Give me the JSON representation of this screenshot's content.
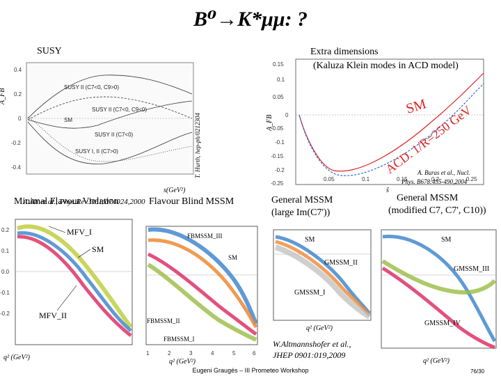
{
  "slide": {
    "title": "B⁰→K*μμ: ?",
    "footer": "Eugeni Graugés – III Prometeo Workshop",
    "page": "76/30"
  },
  "top_left": {
    "heading": "SUSY",
    "ylabel": "A_FB",
    "xlabel": "s(GeV²)",
    "side_ref": "T. Hurth, hep-ph/0212304",
    "ref": "A.Ali et al., Phys.Rev.D61:074024,2000",
    "curve_labels": [
      "SUSY II (C7<0, C9>0)",
      "SUSY II (C7<0, C9<0)",
      "SM",
      "SUSY II (C7<0)",
      "SUSY I, II (C7>0)"
    ],
    "yticks": [
      "0.4",
      "0.2",
      "0",
      "-0.2",
      "-0.4"
    ]
  },
  "top_right": {
    "heading": "Extra dimensions",
    "subheading": "(Kaluza Klein modes in ACD model)",
    "sm_label": "SM",
    "acd_label": "ACD. 1/R=250 GeV",
    "ref_line1": "A. Buras et al., Nucl.",
    "ref_line2": "Phys. B678:455-490,2004",
    "ylabel": "A_FB",
    "xlabel": "ŝ",
    "yticks": [
      "0.15",
      "0.1",
      "0.05",
      "0",
      "-0.05",
      "-0.1",
      "-0.15",
      "-0.2",
      "-0.25"
    ],
    "xticks": [
      "0.05",
      "0.1",
      "0.15",
      "0.2",
      "0.25"
    ]
  },
  "panels": {
    "p1": {
      "heading": "Minimal Flavour Violation",
      "labels": [
        "MFV_I",
        "SM",
        "MFV_II"
      ]
    },
    "p2": {
      "heading": "Flavour Blind MSSM",
      "labels": [
        "FBMSSM_III",
        "SM",
        "FBMSSM_II",
        "FBMSSM_I"
      ]
    },
    "p3": {
      "heading_line1": "General MSSM",
      "heading_line2": "(large Im(C7'))",
      "labels": [
        "SM",
        "GMSSM_II",
        "GMSSM_I"
      ]
    },
    "p4": {
      "heading_line1": "General MSSM",
      "heading_line2": "(modified C7, C7', C10))",
      "labels": [
        "SM",
        "GMSSM_III",
        "GMSSM_IV"
      ]
    },
    "xlabel": "q² (GeV²)",
    "yticks": [
      "0.2",
      "0.1",
      "0.0",
      "-0.1",
      "-0.2",
      "-0.3"
    ],
    "xticks": [
      "1",
      "2",
      "3",
      "4",
      "5",
      "6"
    ]
  },
  "bottom_ref": {
    "line1": "W.Altmannshofer et al.,",
    "line2": "JHEP 0901:019,2009"
  }
}
